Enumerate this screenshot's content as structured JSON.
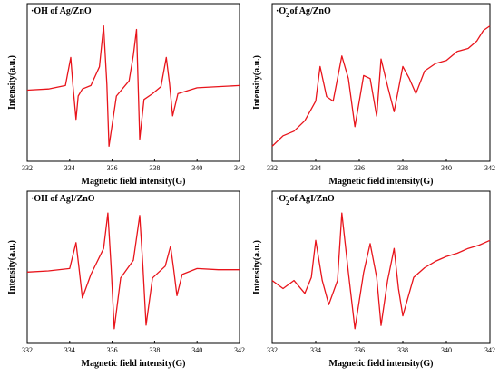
{
  "chart_data": [
    {
      "type": "line",
      "title_prefix": "·OH",
      "title_sup": "",
      "title_rest": " of Ag/ZnO",
      "xlabel": "Magnetic field intensity(G)",
      "ylabel": "Intensity(a.u.)",
      "xlim": [
        332,
        342
      ],
      "xticks": [
        332,
        334,
        336,
        338,
        340,
        342
      ],
      "series_color": "#e8141b",
      "series": [
        {
          "x": [
            332.0,
            333.0,
            333.8,
            334.05,
            334.15,
            334.3,
            334.4,
            334.6,
            335.0,
            335.4,
            335.6,
            335.75,
            335.85,
            336.2,
            336.8,
            337.0,
            337.15,
            337.3,
            337.5,
            337.9,
            338.3,
            338.55,
            338.7,
            338.85,
            339.1,
            340.0,
            341.0,
            342.0
          ],
          "y": [
            0.0,
            0.01,
            0.04,
            0.28,
            0.05,
            -0.25,
            -0.05,
            0.01,
            0.04,
            0.2,
            0.55,
            0.05,
            -0.48,
            -0.05,
            0.08,
            0.3,
            0.52,
            -0.42,
            -0.08,
            -0.03,
            0.03,
            0.28,
            0.06,
            -0.22,
            -0.03,
            0.02,
            0.03,
            0.04
          ]
        }
      ]
    },
    {
      "type": "line",
      "title_prefix": "·O",
      "title_sub": "2",
      "title_sup": "-",
      "title_rest": " of Ag/ZnO",
      "xlabel": "Magnetic field intensity(G)",
      "ylabel": "Intensity(a.u.)",
      "xlim": [
        332,
        342
      ],
      "xticks": [
        332,
        334,
        336,
        338,
        340,
        342
      ],
      "series_color": "#e8141b",
      "series": [
        {
          "x": [
            332.0,
            332.5,
            333.0,
            333.5,
            334.0,
            334.2,
            334.5,
            334.8,
            335.2,
            335.5,
            335.8,
            336.2,
            336.5,
            336.8,
            337.0,
            337.3,
            337.6,
            338.0,
            338.3,
            338.6,
            339.0,
            339.5,
            340.0,
            340.5,
            341.0,
            341.4,
            341.7,
            342.0
          ],
          "y": [
            -0.35,
            -0.28,
            -0.25,
            -0.18,
            -0.05,
            0.18,
            -0.02,
            -0.05,
            0.25,
            0.1,
            -0.22,
            0.12,
            0.1,
            -0.15,
            0.23,
            0.05,
            -0.12,
            0.18,
            0.1,
            0.0,
            0.15,
            0.2,
            0.22,
            0.28,
            0.3,
            0.35,
            0.42,
            0.45
          ]
        }
      ]
    },
    {
      "type": "line",
      "title_prefix": "·OH",
      "title_sup": "",
      "title_rest": " of AgI/ZnO",
      "xlabel": "Magnetic field intensity(G)",
      "ylabel": "Intensity(a.u.)",
      "xlim": [
        332,
        342
      ],
      "xticks": [
        332,
        334,
        336,
        338,
        340,
        342
      ],
      "series_color": "#e8141b",
      "series": [
        {
          "x": [
            332.0,
            333.0,
            334.0,
            334.3,
            334.45,
            334.6,
            335.0,
            335.6,
            335.8,
            335.95,
            336.1,
            336.4,
            337.0,
            337.3,
            337.45,
            337.6,
            337.9,
            338.5,
            338.75,
            338.9,
            339.05,
            339.3,
            340.0,
            341.0,
            342.0
          ],
          "y": [
            0.0,
            0.01,
            0.03,
            0.25,
            0.02,
            -0.22,
            -0.02,
            0.2,
            0.5,
            0.05,
            -0.48,
            -0.05,
            0.1,
            0.48,
            0.05,
            -0.45,
            -0.05,
            0.05,
            0.22,
            0.02,
            -0.2,
            -0.02,
            0.03,
            0.02,
            0.02
          ]
        }
      ]
    },
    {
      "type": "line",
      "title_prefix": "·O",
      "title_sub": "2",
      "title_sup": "-",
      "title_rest": " of AgI/ZnO",
      "xlabel": "Magnetic field intensity(G)",
      "ylabel": "Intensity(a.u.)",
      "xlim": [
        332,
        342
      ],
      "xticks": [
        332,
        334,
        336,
        338,
        340,
        342
      ],
      "series_color": "#e8141b",
      "series": [
        {
          "x": [
            332.0,
            332.5,
            333.0,
            333.5,
            333.8,
            334.0,
            334.3,
            334.6,
            335.0,
            335.2,
            335.5,
            335.8,
            336.2,
            336.5,
            336.8,
            337.0,
            337.3,
            337.6,
            337.8,
            338.0,
            338.5,
            339.0,
            339.5,
            340.0,
            340.5,
            341.0,
            341.5,
            342.0
          ],
          "y": [
            0.0,
            -0.05,
            0.0,
            -0.08,
            0.02,
            0.25,
            0.0,
            -0.15,
            0.0,
            0.42,
            0.05,
            -0.3,
            0.05,
            0.23,
            0.02,
            -0.28,
            0.0,
            0.2,
            -0.05,
            -0.22,
            0.02,
            0.08,
            0.12,
            0.15,
            0.17,
            0.2,
            0.22,
            0.25
          ]
        }
      ]
    }
  ]
}
